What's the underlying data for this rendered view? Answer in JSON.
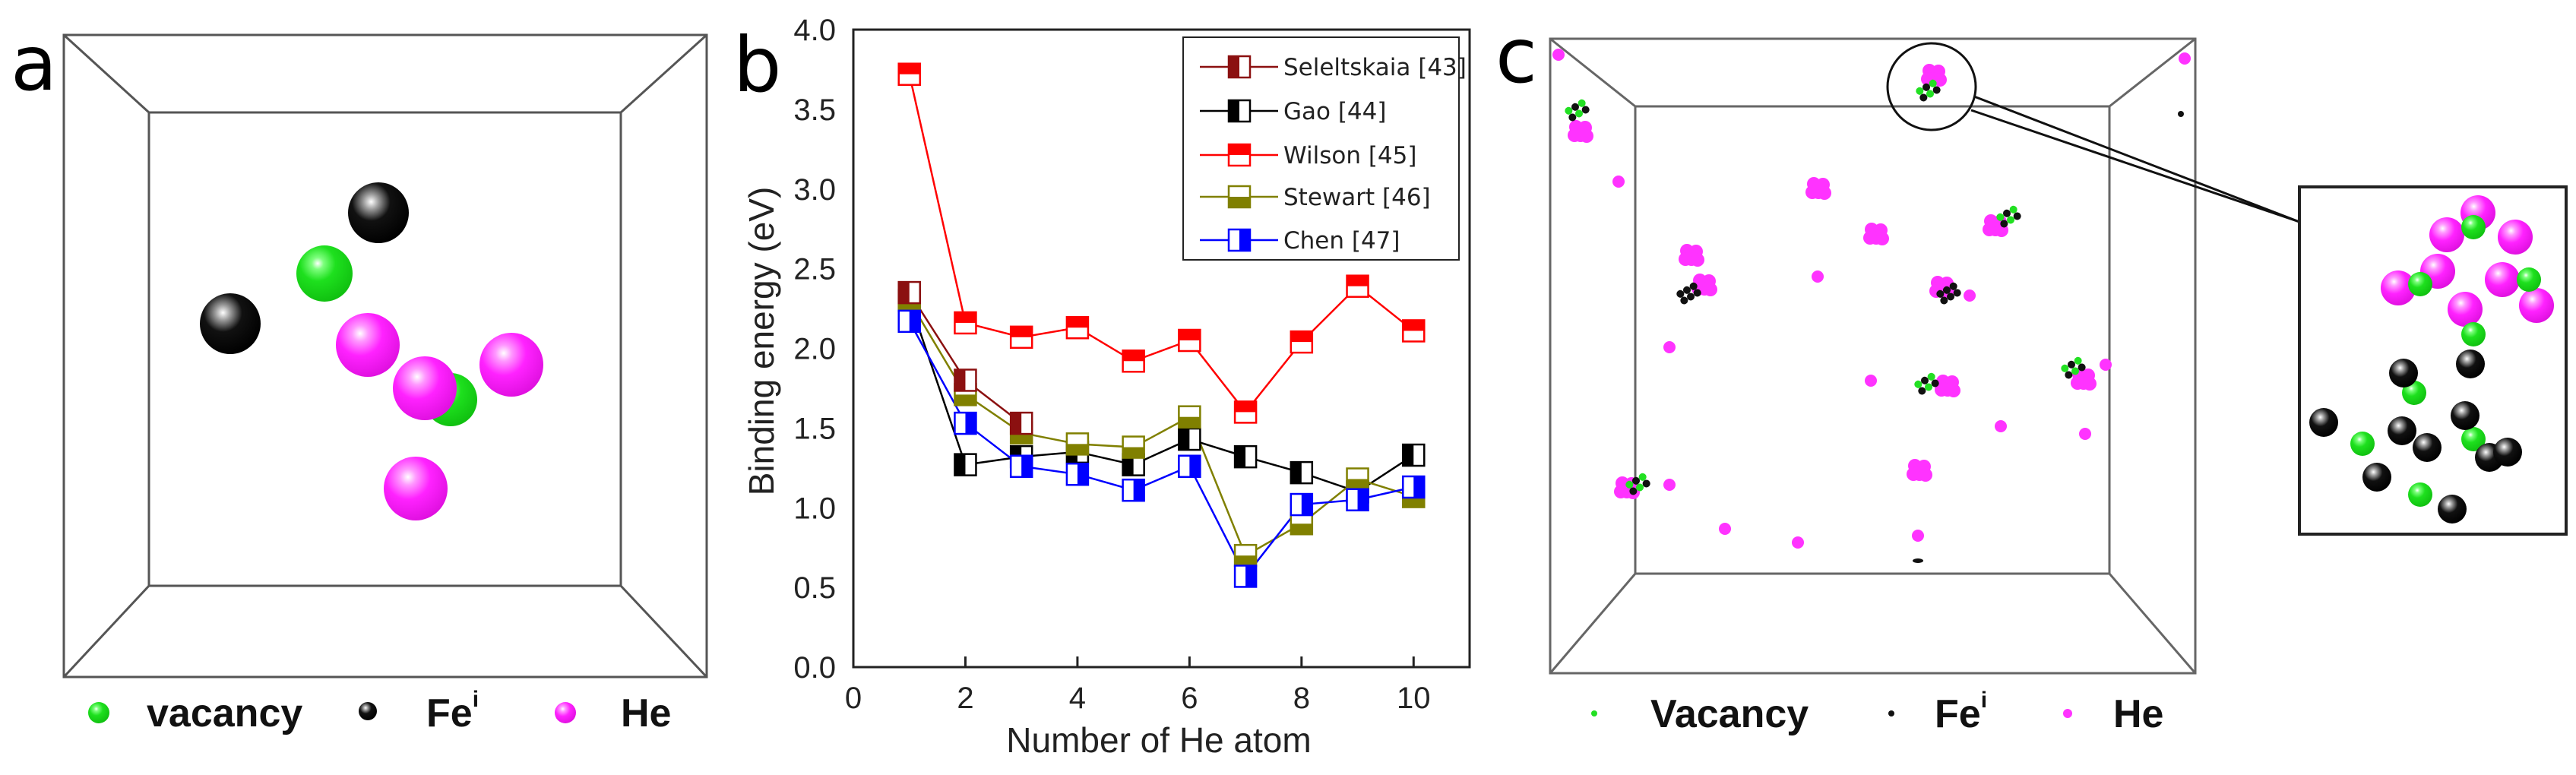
{
  "panel_a": {
    "label": "a",
    "legend": {
      "vacancy": "vacancy",
      "fe": "Fe",
      "fe_sup": "i",
      "he": "He"
    }
  },
  "panel_b": {
    "label": "b"
  },
  "panel_c": {
    "label": "c",
    "legend": {
      "vacancy": "Vacancy",
      "fe": "Fe",
      "fe_sup": "i",
      "he": "He"
    }
  },
  "colors": {
    "vacancy": "#22e022",
    "fe": "#111111",
    "he": "#ff33ff"
  },
  "chart_data": {
    "type": "line",
    "title": "",
    "xlabel": "Number of He atom",
    "ylabel": "Binding energy (eV)",
    "xlim": [
      0,
      11
    ],
    "ylim": [
      0,
      4.0
    ],
    "xticks": [
      "0",
      "2",
      "4",
      "6",
      "8",
      "10"
    ],
    "xtick_values": [
      0,
      2,
      4,
      6,
      8,
      10
    ],
    "yticks": [
      "0.0",
      "0.5",
      "1.0",
      "1.5",
      "2.0",
      "2.5",
      "3.0",
      "3.5",
      "4.0"
    ],
    "ytick_values": [
      0,
      0.5,
      1.0,
      1.5,
      2.0,
      2.5,
      3.0,
      3.5,
      4.0
    ],
    "grid": false,
    "legend_position": "top-right",
    "series": [
      {
        "name": "Seleltskaia [43]",
        "color": "#8b1010",
        "fill": "left",
        "x": [
          1,
          2,
          3
        ],
        "values": [
          2.35,
          1.8,
          1.53
        ]
      },
      {
        "name": "Gao [44]",
        "color": "#000000",
        "fill": "left",
        "x": [
          1,
          2,
          3,
          4,
          5,
          6,
          7,
          8,
          9,
          10
        ],
        "values": [
          2.3,
          1.27,
          1.32,
          1.35,
          1.27,
          1.43,
          1.32,
          1.22,
          1.1,
          1.33
        ]
      },
      {
        "name": "Wilson [45]",
        "color": "#ff0000",
        "fill": "top",
        "x": [
          1,
          2,
          3,
          4,
          5,
          6,
          7,
          8,
          9,
          10
        ],
        "values": [
          3.72,
          2.16,
          2.07,
          2.13,
          1.92,
          2.05,
          1.6,
          2.04,
          2.39,
          2.11
        ]
      },
      {
        "name": "Stewart [46]",
        "color": "#808000",
        "fill": "bottom",
        "x": [
          1,
          2,
          3,
          4,
          5,
          6,
          7,
          8,
          9,
          10
        ],
        "values": [
          2.3,
          1.71,
          1.47,
          1.4,
          1.38,
          1.57,
          0.7,
          0.9,
          1.18,
          1.07
        ]
      },
      {
        "name": "Chen [47]",
        "color": "#0000ff",
        "fill": "right",
        "x": [
          1,
          2,
          3,
          4,
          5,
          6,
          7,
          8,
          9,
          10
        ],
        "values": [
          2.17,
          1.53,
          1.26,
          1.21,
          1.11,
          1.26,
          0.57,
          1.02,
          1.05,
          1.13
        ]
      }
    ]
  }
}
